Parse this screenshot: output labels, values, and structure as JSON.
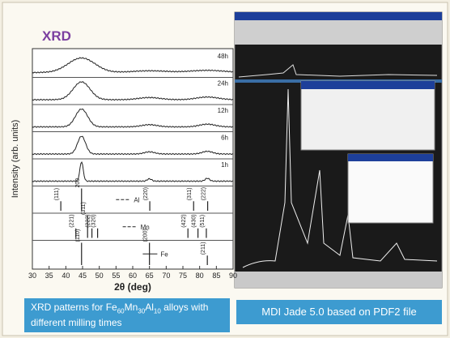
{
  "slide": {
    "title": "XRD",
    "xrd_plot": {
      "panels": [
        "48h",
        "24h",
        "12h",
        "6h",
        "1h"
      ],
      "references": [
        {
          "element": "Al",
          "peaks": [
            "(111)",
            "200",
            "(220)",
            "(311)",
            "(222)"
          ]
        },
        {
          "element": "Mn",
          "peaks": [
            "(221)",
            "(311)",
            "(222)",
            "(320)",
            "(422)",
            "(430)",
            "(511)"
          ]
        },
        {
          "element": "Fe",
          "peaks": [
            "(110)",
            "(200)",
            "(211)"
          ]
        }
      ],
      "x_ticks": [
        30,
        35,
        40,
        45,
        50,
        55,
        60,
        65,
        70,
        75,
        80,
        85,
        90
      ],
      "x_label": "2θ (deg)",
      "y_label": "Intensity (arb. units)"
    },
    "captions": [
      {
        "parts": [
          "XRD patterns for Fe",
          "60",
          "Mn",
          "30",
          "Al",
          "10",
          " alloys with different milling times"
        ]
      },
      {
        "parts": [
          "MDI Jade 5.0 based on PDF2 file"
        ]
      }
    ]
  }
}
